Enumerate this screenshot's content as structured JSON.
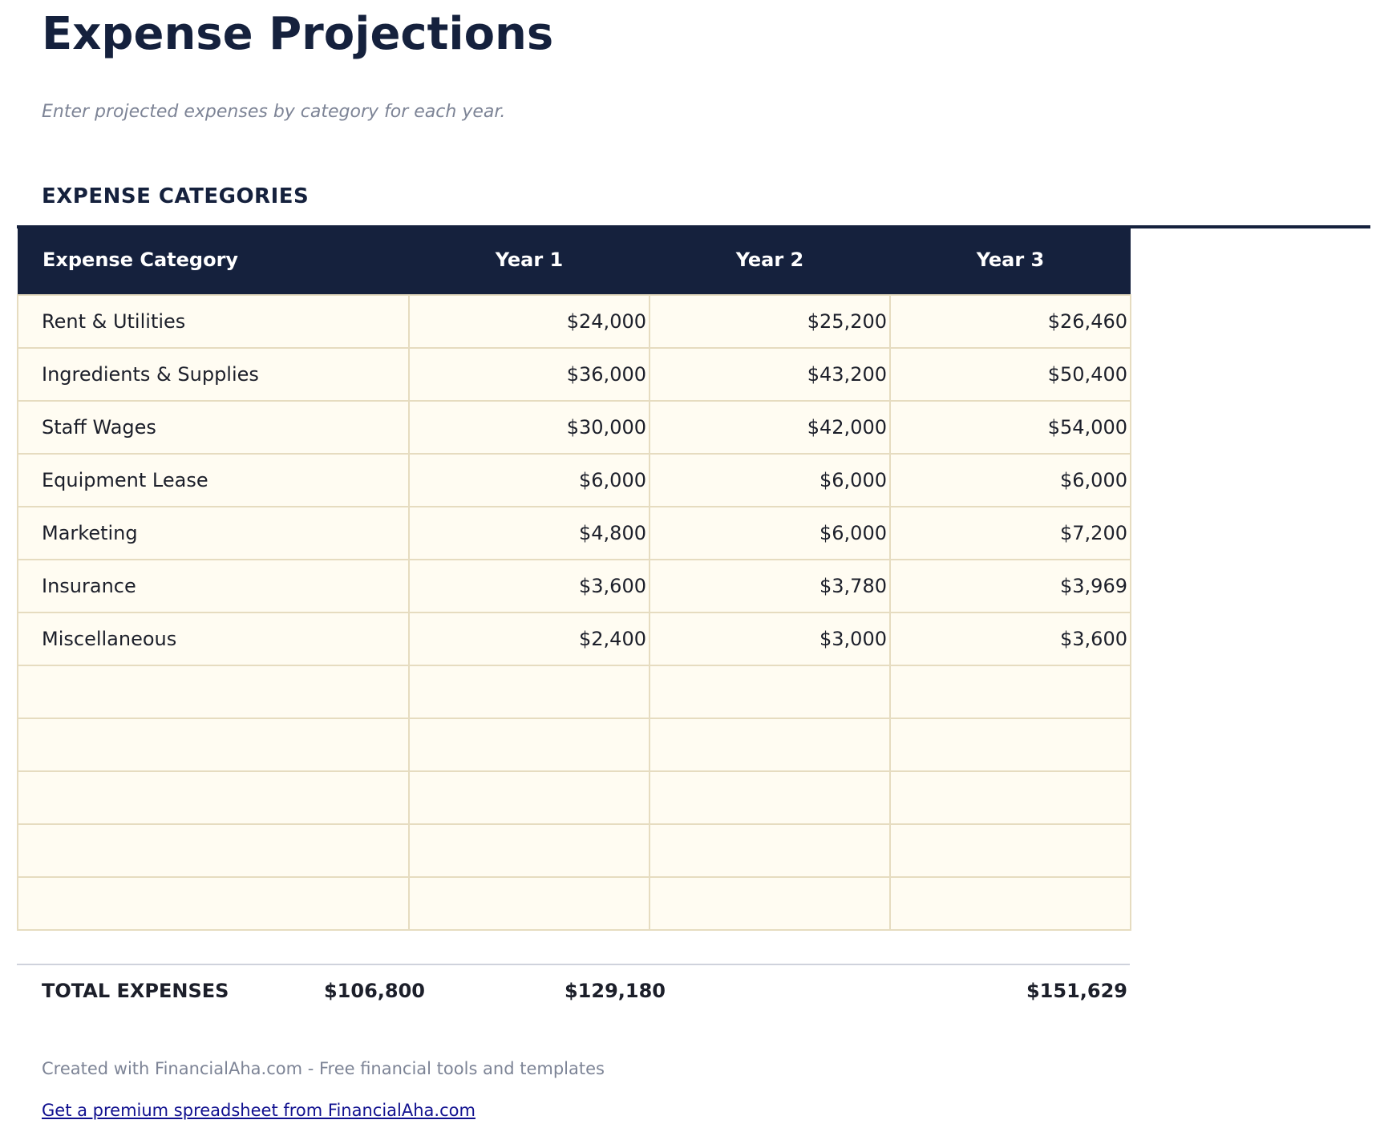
{
  "header": {
    "title": "Expense Projections",
    "subtitle": "Enter projected expenses by category for each year.",
    "section_title": "EXPENSE CATEGORIES"
  },
  "table": {
    "columns": [
      "Expense Category",
      "Year 1",
      "Year 2",
      "Year 3"
    ],
    "rows": [
      [
        "Rent & Utilities",
        "$24,000",
        "$25,200",
        "$26,460"
      ],
      [
        "Ingredients & Supplies",
        "$36,000",
        "$43,200",
        "$50,400"
      ],
      [
        "Staff Wages",
        "$30,000",
        "$42,000",
        "$54,000"
      ],
      [
        "Equipment Lease",
        "$6,000",
        "$6,000",
        "$6,000"
      ],
      [
        "Marketing",
        "$4,800",
        "$6,000",
        "$7,200"
      ],
      [
        "Insurance",
        "$3,600",
        "$3,780",
        "$3,969"
      ],
      [
        "Miscellaneous",
        "$2,400",
        "$3,000",
        "$3,600"
      ],
      [
        "",
        "",
        "",
        ""
      ],
      [
        "",
        "",
        "",
        ""
      ],
      [
        "",
        "",
        "",
        ""
      ],
      [
        "",
        "",
        "",
        ""
      ],
      [
        "",
        "",
        "",
        ""
      ]
    ],
    "totals": {
      "label": "TOTAL EXPENSES",
      "values": [
        "$106,800",
        "$129,180",
        "$151,629"
      ]
    }
  },
  "footer": {
    "credit": "Created with FinancialAha.com - Free financial tools and templates",
    "link_text": "Get a premium spreadsheet from FinancialAha.com"
  },
  "colors": {
    "header_bg": "#15213d",
    "cell_bg": "#fffcf2",
    "cell_border": "#e6dcc0",
    "link": "#10108f"
  }
}
